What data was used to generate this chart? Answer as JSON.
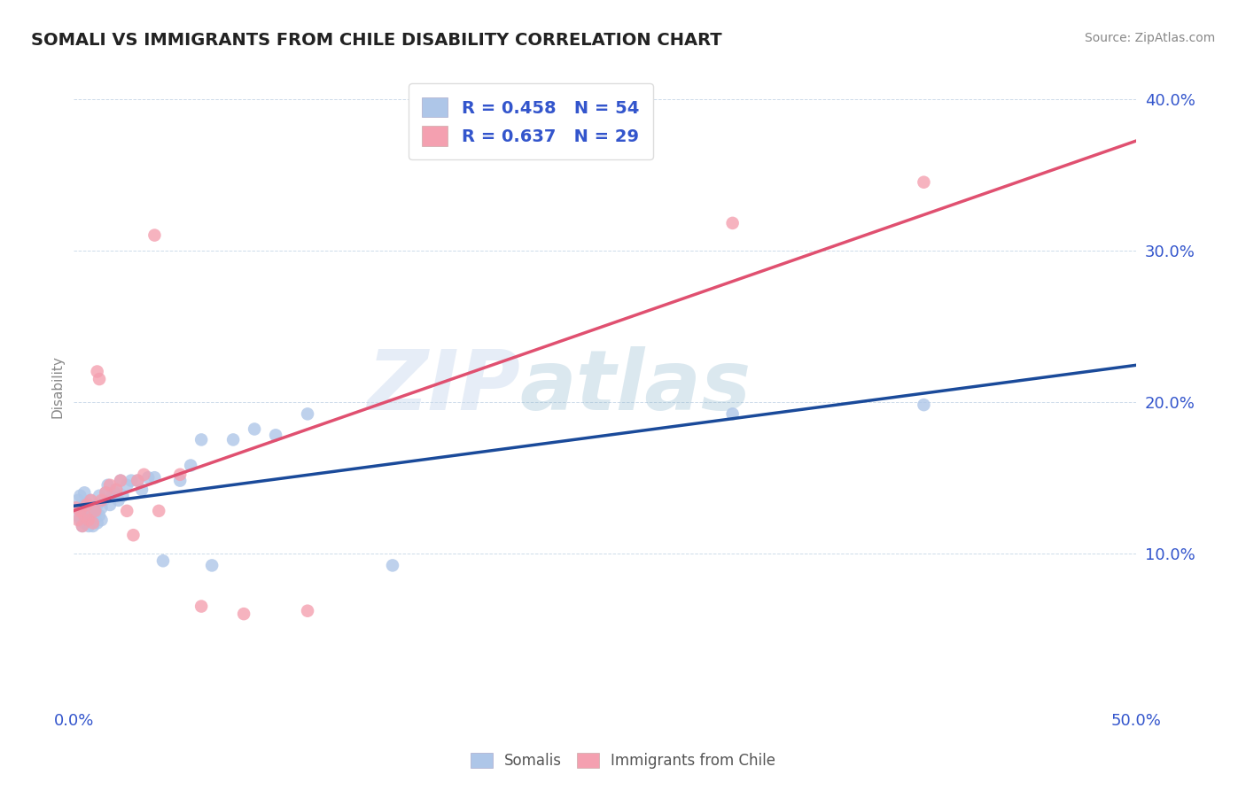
{
  "title": "SOMALI VS IMMIGRANTS FROM CHILE DISABILITY CORRELATION CHART",
  "source": "Source: ZipAtlas.com",
  "ylabel": "Disability",
  "xlim": [
    0.0,
    0.5
  ],
  "ylim": [
    0.0,
    0.42
  ],
  "yticks": [
    0.1,
    0.2,
    0.3,
    0.4
  ],
  "ytick_labels": [
    "10.0%",
    "20.0%",
    "30.0%",
    "40.0%"
  ],
  "xticks": [
    0.0,
    0.1,
    0.2,
    0.3,
    0.4,
    0.5
  ],
  "xtick_labels": [
    "0.0%",
    "",
    "",
    "",
    "",
    "50.0%"
  ],
  "somali_color": "#aec6e8",
  "chile_color": "#f4a0b0",
  "somali_line_color": "#1a4a9a",
  "chile_line_color": "#e05070",
  "R_somali": 0.458,
  "N_somali": 54,
  "R_chile": 0.637,
  "N_chile": 29,
  "legend_text_color": "#3355cc",
  "watermark_zip": "ZIP",
  "watermark_atlas": "atlas",
  "somali_x": [
    0.001,
    0.002,
    0.002,
    0.003,
    0.003,
    0.004,
    0.004,
    0.005,
    0.005,
    0.005,
    0.006,
    0.006,
    0.007,
    0.007,
    0.008,
    0.008,
    0.009,
    0.009,
    0.01,
    0.01,
    0.011,
    0.011,
    0.012,
    0.012,
    0.013,
    0.013,
    0.014,
    0.015,
    0.016,
    0.017,
    0.018,
    0.019,
    0.02,
    0.021,
    0.022,
    0.023,
    0.025,
    0.027,
    0.03,
    0.032,
    0.035,
    0.038,
    0.042,
    0.05,
    0.055,
    0.06,
    0.065,
    0.075,
    0.085,
    0.095,
    0.11,
    0.15,
    0.31,
    0.4
  ],
  "somali_y": [
    0.13,
    0.125,
    0.135,
    0.122,
    0.138,
    0.128,
    0.118,
    0.132,
    0.12,
    0.14,
    0.125,
    0.133,
    0.128,
    0.118,
    0.135,
    0.122,
    0.13,
    0.118,
    0.125,
    0.128,
    0.132,
    0.12,
    0.138,
    0.125,
    0.13,
    0.122,
    0.135,
    0.14,
    0.145,
    0.132,
    0.138,
    0.14,
    0.142,
    0.135,
    0.148,
    0.138,
    0.145,
    0.148,
    0.148,
    0.142,
    0.15,
    0.15,
    0.095,
    0.148,
    0.158,
    0.175,
    0.092,
    0.175,
    0.182,
    0.178,
    0.192,
    0.092,
    0.192,
    0.198
  ],
  "chile_x": [
    0.001,
    0.002,
    0.003,
    0.004,
    0.005,
    0.006,
    0.007,
    0.008,
    0.009,
    0.01,
    0.011,
    0.012,
    0.013,
    0.015,
    0.017,
    0.02,
    0.022,
    0.025,
    0.028,
    0.03,
    0.033,
    0.038,
    0.04,
    0.05,
    0.06,
    0.08,
    0.11,
    0.31,
    0.4
  ],
  "chile_y": [
    0.13,
    0.122,
    0.128,
    0.118,
    0.125,
    0.132,
    0.122,
    0.135,
    0.12,
    0.128,
    0.22,
    0.215,
    0.135,
    0.14,
    0.145,
    0.142,
    0.148,
    0.128,
    0.112,
    0.148,
    0.152,
    0.31,
    0.128,
    0.152,
    0.065,
    0.06,
    0.062,
    0.318,
    0.345
  ]
}
